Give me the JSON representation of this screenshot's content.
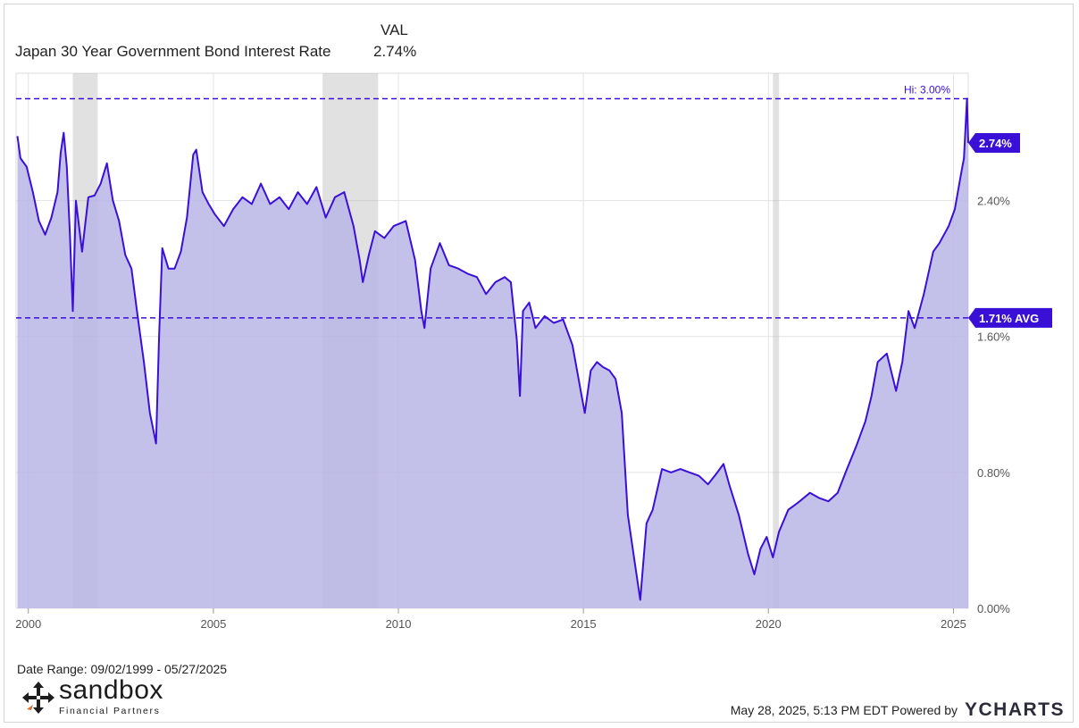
{
  "legend": {
    "header": "VAL",
    "series_name": "Japan 30 Year Government Bond Interest Rate",
    "series_value": "2.74%"
  },
  "colors": {
    "line": "#3a10d6",
    "fill": "#b8b5e6",
    "recession": "#a8a8a8",
    "grid": "#e3e3e3",
    "tag": "#3a10d6"
  },
  "chart_data": {
    "type": "area",
    "x_ticks": [
      "2000",
      "2005",
      "2010",
      "2015",
      "2020",
      "2025"
    ],
    "y_ticks": [
      "0.00%",
      "0.80%",
      "1.60%",
      "2.40%"
    ],
    "ylim": [
      0.0,
      3.15
    ],
    "xlim": [
      "1999-09-02",
      "2025-05-27"
    ],
    "grid": true,
    "recessions": [
      {
        "start": "2001-03",
        "end": "2001-11"
      },
      {
        "start": "2007-12",
        "end": "2009-06"
      },
      {
        "start": "2020-02",
        "end": "2020-04"
      }
    ],
    "reference_lines": [
      {
        "label": "Hi: 3.00%",
        "value": 3.0
      },
      {
        "label": "1.71% AVG",
        "value": 1.71
      }
    ],
    "last_value_label": "2.74%",
    "series": [
      {
        "name": "Japan 30 Year Government Bond Interest Rate",
        "points": [
          [
            "1999-09",
            2.78
          ],
          [
            "1999-10",
            2.65
          ],
          [
            "1999-12",
            2.6
          ],
          [
            "2000-02",
            2.45
          ],
          [
            "2000-04",
            2.28
          ],
          [
            "2000-06",
            2.2
          ],
          [
            "2000-08",
            2.3
          ],
          [
            "2000-10",
            2.45
          ],
          [
            "2000-11",
            2.68
          ],
          [
            "2000-12",
            2.8
          ],
          [
            "2001-01",
            2.6
          ],
          [
            "2001-02",
            2.2
          ],
          [
            "2001-03",
            1.75
          ],
          [
            "2001-04",
            2.4
          ],
          [
            "2001-06",
            2.1
          ],
          [
            "2001-08",
            2.42
          ],
          [
            "2001-10",
            2.43
          ],
          [
            "2001-12",
            2.5
          ],
          [
            "2002-02",
            2.62
          ],
          [
            "2002-04",
            2.4
          ],
          [
            "2002-06",
            2.28
          ],
          [
            "2002-08",
            2.08
          ],
          [
            "2002-10",
            2.0
          ],
          [
            "2002-12",
            1.72
          ],
          [
            "2003-02",
            1.45
          ],
          [
            "2003-04",
            1.15
          ],
          [
            "2003-06",
            0.97
          ],
          [
            "2003-07",
            1.6
          ],
          [
            "2003-08",
            2.12
          ],
          [
            "2003-10",
            2.0
          ],
          [
            "2003-12",
            2.0
          ],
          [
            "2004-02",
            2.1
          ],
          [
            "2004-04",
            2.3
          ],
          [
            "2004-06",
            2.67
          ],
          [
            "2004-07",
            2.7
          ],
          [
            "2004-09",
            2.45
          ],
          [
            "2004-11",
            2.38
          ],
          [
            "2005-01",
            2.32
          ],
          [
            "2005-04",
            2.25
          ],
          [
            "2005-07",
            2.35
          ],
          [
            "2005-10",
            2.42
          ],
          [
            "2006-01",
            2.38
          ],
          [
            "2006-04",
            2.5
          ],
          [
            "2006-07",
            2.38
          ],
          [
            "2006-10",
            2.42
          ],
          [
            "2007-01",
            2.35
          ],
          [
            "2007-04",
            2.45
          ],
          [
            "2007-07",
            2.38
          ],
          [
            "2007-10",
            2.48
          ],
          [
            "2008-01",
            2.3
          ],
          [
            "2008-04",
            2.42
          ],
          [
            "2008-07",
            2.45
          ],
          [
            "2008-10",
            2.25
          ],
          [
            "2008-12",
            2.05
          ],
          [
            "2009-01",
            1.92
          ],
          [
            "2009-03",
            2.08
          ],
          [
            "2009-05",
            2.22
          ],
          [
            "2009-08",
            2.18
          ],
          [
            "2009-11",
            2.25
          ],
          [
            "2010-03",
            2.28
          ],
          [
            "2010-06",
            2.05
          ],
          [
            "2010-08",
            1.75
          ],
          [
            "2010-09",
            1.65
          ],
          [
            "2010-11",
            2.0
          ],
          [
            "2011-02",
            2.15
          ],
          [
            "2011-05",
            2.02
          ],
          [
            "2011-08",
            2.0
          ],
          [
            "2011-11",
            1.97
          ],
          [
            "2012-02",
            1.95
          ],
          [
            "2012-05",
            1.85
          ],
          [
            "2012-08",
            1.92
          ],
          [
            "2012-11",
            1.95
          ],
          [
            "2013-01",
            1.92
          ],
          [
            "2013-03",
            1.58
          ],
          [
            "2013-04",
            1.25
          ],
          [
            "2013-05",
            1.75
          ],
          [
            "2013-07",
            1.8
          ],
          [
            "2013-09",
            1.65
          ],
          [
            "2013-12",
            1.72
          ],
          [
            "2014-03",
            1.68
          ],
          [
            "2014-06",
            1.7
          ],
          [
            "2014-09",
            1.55
          ],
          [
            "2014-12",
            1.25
          ],
          [
            "2015-01",
            1.15
          ],
          [
            "2015-03",
            1.4
          ],
          [
            "2015-05",
            1.45
          ],
          [
            "2015-07",
            1.42
          ],
          [
            "2015-09",
            1.4
          ],
          [
            "2015-11",
            1.35
          ],
          [
            "2016-01",
            1.15
          ],
          [
            "2016-03",
            0.55
          ],
          [
            "2016-05",
            0.3
          ],
          [
            "2016-07",
            0.05
          ],
          [
            "2016-09",
            0.5
          ],
          [
            "2016-11",
            0.58
          ],
          [
            "2017-02",
            0.82
          ],
          [
            "2017-05",
            0.8
          ],
          [
            "2017-08",
            0.82
          ],
          [
            "2017-11",
            0.8
          ],
          [
            "2018-02",
            0.78
          ],
          [
            "2018-05",
            0.73
          ],
          [
            "2018-08",
            0.8
          ],
          [
            "2018-10",
            0.85
          ],
          [
            "2018-12",
            0.72
          ],
          [
            "2019-03",
            0.55
          ],
          [
            "2019-06",
            0.32
          ],
          [
            "2019-08",
            0.2
          ],
          [
            "2019-10",
            0.35
          ],
          [
            "2019-12",
            0.42
          ],
          [
            "2020-02",
            0.3
          ],
          [
            "2020-04",
            0.45
          ],
          [
            "2020-07",
            0.58
          ],
          [
            "2020-10",
            0.62
          ],
          [
            "2021-02",
            0.68
          ],
          [
            "2021-05",
            0.65
          ],
          [
            "2021-08",
            0.63
          ],
          [
            "2021-11",
            0.68
          ],
          [
            "2022-02",
            0.82
          ],
          [
            "2022-05",
            0.95
          ],
          [
            "2022-08",
            1.1
          ],
          [
            "2022-10",
            1.25
          ],
          [
            "2022-12",
            1.45
          ],
          [
            "2023-03",
            1.5
          ],
          [
            "2023-06",
            1.28
          ],
          [
            "2023-08",
            1.45
          ],
          [
            "2023-10",
            1.75
          ],
          [
            "2023-12",
            1.65
          ],
          [
            "2024-03",
            1.85
          ],
          [
            "2024-06",
            2.1
          ],
          [
            "2024-08",
            2.15
          ],
          [
            "2024-11",
            2.25
          ],
          [
            "2025-01",
            2.35
          ],
          [
            "2025-03",
            2.55
          ],
          [
            "2025-04",
            2.65
          ],
          [
            "2025-05",
            3.0
          ],
          [
            "2025-05-27",
            2.74
          ]
        ]
      }
    ]
  },
  "footer": {
    "date_range": "Date Range: 09/02/1999 - 05/27/2025",
    "timestamp": "May 28, 2025, 5:13 PM EDT Powered by",
    "brand": "YCHARTS",
    "logo_word": "sandbox",
    "logo_sub": "Financial Partners"
  }
}
